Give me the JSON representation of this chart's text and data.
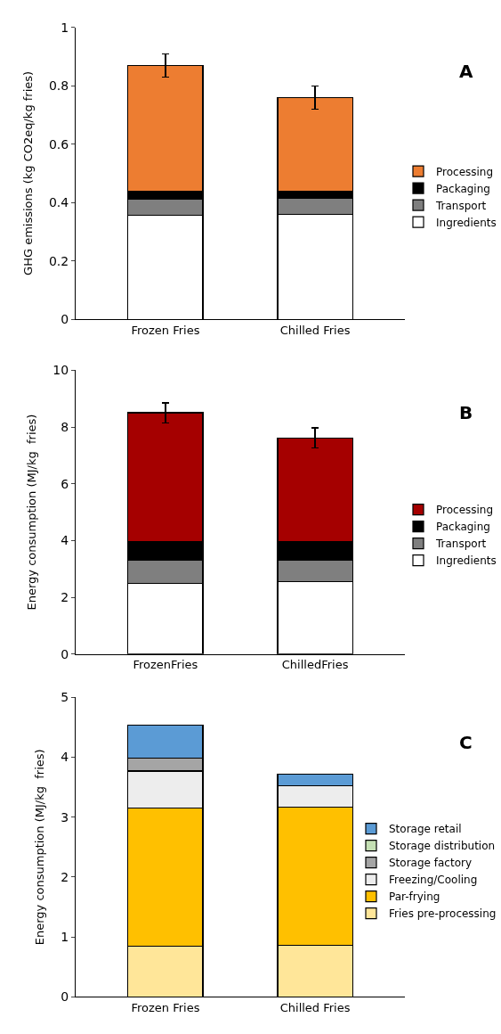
{
  "chart_data": [
    {
      "type": "bar",
      "stacked": true,
      "categories": [
        "Frozen Fries",
        "Chilled Fries"
      ],
      "ylabel": "GHG emissions (kg CO2eq/kg fries)",
      "ylim": [
        0,
        1
      ],
      "yticks": [
        0,
        0.2,
        0.4,
        0.6,
        0.8,
        1
      ],
      "legend": "right",
      "annotations": [
        "A"
      ],
      "series": [
        {
          "name": "Ingredients",
          "color": "#ffffff",
          "values": [
            0.357,
            0.36
          ]
        },
        {
          "name": "Transport",
          "color": "#7f7f7f",
          "values": [
            0.055,
            0.053
          ]
        },
        {
          "name": "Packaging",
          "color": "#000000",
          "values": [
            0.026,
            0.025
          ]
        },
        {
          "name": "Processing",
          "color": "#ed7d31",
          "values": [
            0.432,
            0.322
          ],
          "errors": [
            0.04,
            0.04
          ]
        }
      ]
    },
    {
      "type": "bar",
      "stacked": true,
      "categories": [
        "FrozenFries",
        "ChilledFries"
      ],
      "ylabel": "Energy consumption (MJ/kg  fries)",
      "ylim": [
        0,
        10
      ],
      "yticks": [
        0,
        2,
        4,
        6,
        8,
        10
      ],
      "legend": "right",
      "annotations": [
        "B"
      ],
      "series": [
        {
          "name": "Ingredients",
          "color": "#ffffff",
          "values": [
            2.5,
            2.55
          ]
        },
        {
          "name": "Transport",
          "color": "#7f7f7f",
          "values": [
            0.8,
            0.75
          ]
        },
        {
          "name": "Packaging",
          "color": "#000000",
          "values": [
            0.65,
            0.65
          ]
        },
        {
          "name": "Processing",
          "color": "#a50000",
          "values": [
            4.55,
            3.67
          ],
          "errors": [
            0.35,
            0.35
          ]
        }
      ]
    },
    {
      "type": "bar",
      "stacked": true,
      "categories": [
        "Frozen Fries",
        "Chilled Fries"
      ],
      "ylabel": "Energy consumption (MJ/kg  fries)",
      "ylim": [
        0,
        5
      ],
      "yticks": [
        0,
        1,
        2,
        3,
        4,
        5
      ],
      "legend": "right",
      "annotations": [
        "C"
      ],
      "series": [
        {
          "name": "Fries pre-processing",
          "color": "#ffe699",
          "values": [
            0.85,
            0.86
          ]
        },
        {
          "name": "Par-frying",
          "color": "#ffc000",
          "values": [
            2.3,
            2.31
          ]
        },
        {
          "name": "Freezing/Cooling",
          "color": "#ededed",
          "values": [
            0.62,
            0.35
          ]
        },
        {
          "name": "Storage factory",
          "color": "#a5a5a5",
          "values": [
            0.21,
            0
          ]
        },
        {
          "name": "Storage distribution",
          "color": "#c5e0b4",
          "values": [
            0,
            0
          ]
        },
        {
          "name": "Storage retail",
          "color": "#5b9bd5",
          "values": [
            0.55,
            0.2
          ]
        }
      ]
    }
  ]
}
